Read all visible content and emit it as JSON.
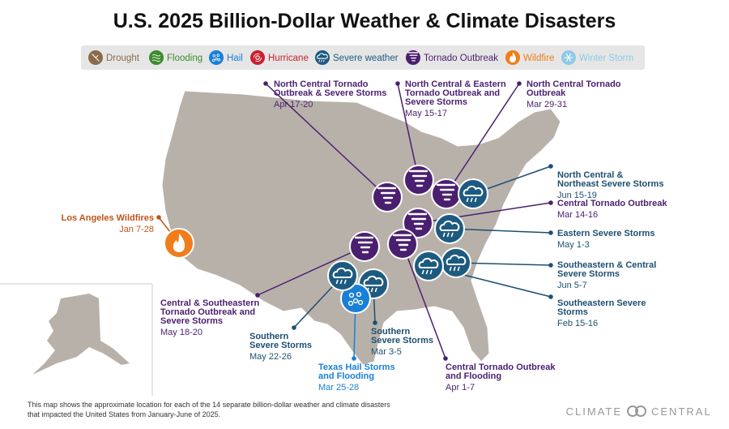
{
  "title": "U.S. 2025 Billion-Dollar Weather & Climate Disasters",
  "legend": [
    {
      "name": "Drought",
      "color": "#8b6a4a"
    },
    {
      "name": "Flooding",
      "color": "#3d8b2e"
    },
    {
      "name": "Hail",
      "color": "#1a7fd6"
    },
    {
      "name": "Hurricane",
      "color": "#c8202f"
    },
    {
      "name": "Severe weather",
      "color": "#1d5a80"
    },
    {
      "name": "Tornado Outbreak",
      "color": "#4b1f6f"
    },
    {
      "name": "Wildfire",
      "color": "#f07d1a"
    },
    {
      "name": "Winter Storm",
      "color": "#8ecae6"
    }
  ],
  "events": [
    {
      "name": [
        "North Central Tornado",
        "Outbreak & Severe Storms"
      ],
      "dates": "Apr 17-20",
      "category": "Tornado Outbreak"
    },
    {
      "name": [
        "North Central & Eastern",
        "Tornado Outbreak and",
        "Severe Storms"
      ],
      "dates": "May 15-17",
      "category": "Tornado Outbreak"
    },
    {
      "name": [
        "North Central Tornado",
        "Outbreak"
      ],
      "dates": "Mar 29-31",
      "category": "Tornado Outbreak"
    },
    {
      "name": [
        "North Central &",
        "Northeast Severe Storms"
      ],
      "dates": "Jun 15-19",
      "category": "Severe weather"
    },
    {
      "name": [
        "Central Tornado Outbreak"
      ],
      "dates": "Mar 14-16",
      "category": "Tornado Outbreak"
    },
    {
      "name": [
        "Eastern Severe Storms"
      ],
      "dates": "May 1-3",
      "category": "Severe weather"
    },
    {
      "name": [
        "Southeastern & Central",
        "Severe Storms"
      ],
      "dates": "Jun 5-7",
      "category": "Severe weather"
    },
    {
      "name": [
        "Southeastern Severe",
        "Storms"
      ],
      "dates": "Feb 15-16",
      "category": "Severe weather"
    },
    {
      "name": [
        "Central Tornado Outbreak",
        "and Flooding"
      ],
      "dates": "Apr 1-7",
      "category": "Tornado Outbreak"
    },
    {
      "name": [
        "Southern",
        "Severe Storms"
      ],
      "dates": "Mar 3-5",
      "category": "Severe weather"
    },
    {
      "name": [
        "Texas Hail Storms",
        "and Flooding"
      ],
      "dates": "Mar 25-28",
      "category": "Hail"
    },
    {
      "name": [
        "Southern",
        "Severe Storms"
      ],
      "dates": "May 22-26",
      "category": "Severe weather"
    },
    {
      "name": [
        "Central & Southeastern",
        "Tornado Outbreak and",
        "Severe Storms"
      ],
      "dates": "May 18-20",
      "category": "Tornado Outbreak"
    },
    {
      "name": [
        "Los Angeles Wildfires"
      ],
      "dates": "Jan 7-28",
      "category": "Wildfire"
    }
  ],
  "footer": {
    "note": [
      "This map shows the approximate location for each of the 14 separate billion-dollar weather and climate disasters",
      "that impacted the United States from January-June of 2025."
    ],
    "logo": [
      "CLIMATE",
      "CENTRAL"
    ]
  }
}
